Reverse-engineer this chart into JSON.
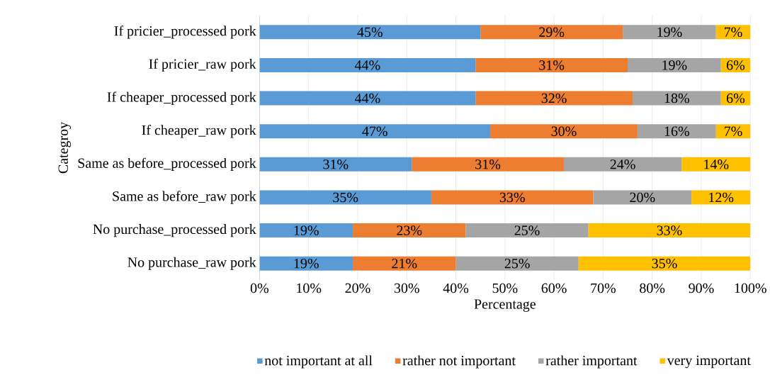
{
  "chart_data": {
    "type": "bar",
    "orientation": "horizontal",
    "stacked": true,
    "xlabel": "Percentage",
    "ylabel": "Categroy",
    "categories": [
      "If pricier_processed pork",
      "If pricier_raw pork",
      "If cheaper_processed pork",
      "If cheaper_raw pork",
      "Same as before_processed pork",
      "Same as before_raw pork",
      "No purchase_processed pork",
      "No purchase_raw pork"
    ],
    "series": [
      {
        "name": "not important at all",
        "color": "#5b9bd5",
        "values": [
          45,
          44,
          44,
          47,
          31,
          35,
          19,
          19
        ],
        "value_labels": [
          "45%",
          "44%",
          "44%",
          "47%",
          "31%",
          "35%",
          "19%",
          "19%"
        ]
      },
      {
        "name": "rather not important",
        "color": "#ed7d31",
        "values": [
          29,
          31,
          32,
          30,
          31,
          33,
          23,
          21
        ],
        "value_labels": [
          "29%",
          "31%",
          "32%",
          "30%",
          "31%",
          "33%",
          "23%",
          "21%"
        ]
      },
      {
        "name": "rather important",
        "color": "#a5a5a5",
        "values": [
          19,
          19,
          18,
          16,
          24,
          20,
          25,
          25
        ],
        "value_labels": [
          "19%",
          "19%",
          "18%",
          "16%",
          "24%",
          "20%",
          "25%",
          "25%"
        ]
      },
      {
        "name": "very important",
        "color": "#ffc000",
        "values": [
          7,
          6,
          6,
          7,
          14,
          12,
          33,
          35
        ],
        "value_labels": [
          "7%",
          "6%",
          "6%",
          "7%",
          "14%",
          "12%",
          "33%",
          "35%"
        ]
      }
    ],
    "xlim": [
      0,
      100
    ],
    "xticks": [
      {
        "value": 0,
        "label": "0%"
      },
      {
        "value": 10,
        "label": "10%"
      },
      {
        "value": 20,
        "label": "20%"
      },
      {
        "value": 30,
        "label": "30%"
      },
      {
        "value": 40,
        "label": "40%"
      },
      {
        "value": 50,
        "label": "50%"
      },
      {
        "value": 60,
        "label": "60%"
      },
      {
        "value": 70,
        "label": "70%"
      },
      {
        "value": 80,
        "label": "80%"
      },
      {
        "value": 90,
        "label": "90%"
      },
      {
        "value": 100,
        "label": "100%"
      }
    ],
    "grid": "x",
    "legend": "bottom"
  }
}
